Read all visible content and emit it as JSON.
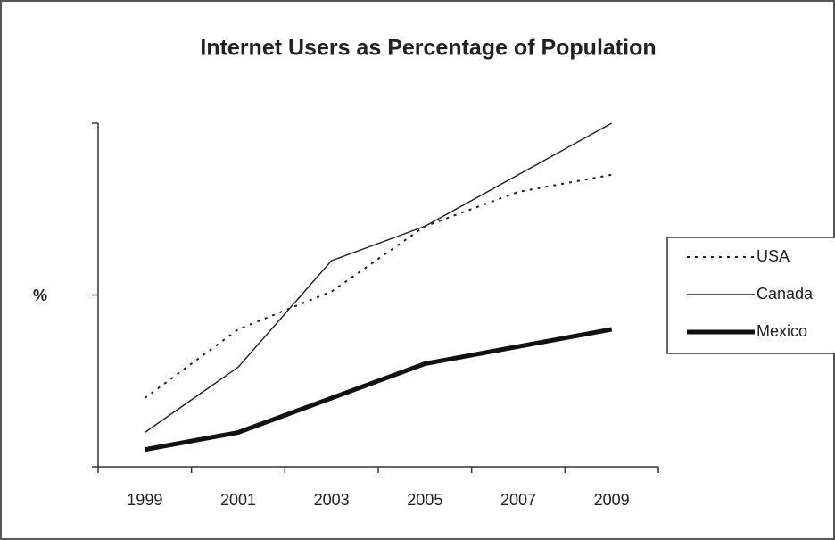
{
  "chart_data": {
    "type": "line",
    "title": "Internet Users as Percentage of Population",
    "y_label": "%",
    "categories": [
      "1999",
      "2001",
      "2003",
      "2005",
      "2007",
      "2009"
    ],
    "series": [
      {
        "name": "USA",
        "color": "#222222",
        "style": "dotted",
        "width": 2,
        "values": [
          20,
          40,
          51,
          70,
          80,
          85
        ]
      },
      {
        "name": "Canada",
        "color": "#222222",
        "style": "solid",
        "width": 1.4,
        "values": [
          10,
          29,
          60,
          70,
          85,
          100
        ]
      },
      {
        "name": "Mexico",
        "color": "#111111",
        "style": "solid",
        "width": 5,
        "values": [
          5,
          10,
          20,
          30,
          35,
          40
        ]
      }
    ],
    "ylim": [
      0,
      100
    ],
    "yticks": [
      0,
      50,
      100
    ],
    "legend": "right"
  }
}
